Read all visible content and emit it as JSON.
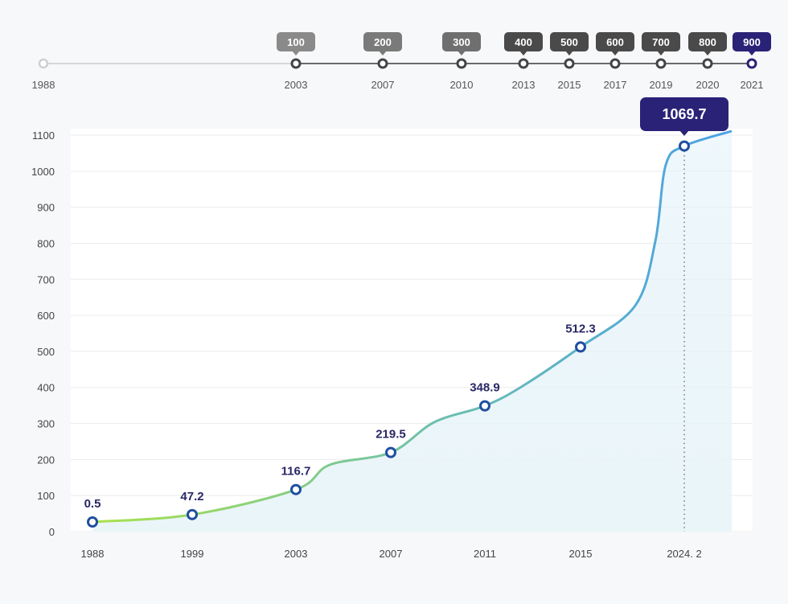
{
  "timeline": {
    "start_year": "1988",
    "milestones": [
      {
        "badge": "100",
        "year": "2003"
      },
      {
        "badge": "200",
        "year": "2007"
      },
      {
        "badge": "300",
        "year": "2010"
      },
      {
        "badge": "400",
        "year": "2013"
      },
      {
        "badge": "500",
        "year": "2015"
      },
      {
        "badge": "600",
        "year": "2017"
      },
      {
        "badge": "700",
        "year": "2019"
      },
      {
        "badge": "800",
        "year": "2020"
      },
      {
        "badge": "900",
        "year": "2021"
      }
    ],
    "active_color": "#2a2277"
  },
  "chart_data": {
    "type": "line",
    "categories": [
      "1988",
      "1999",
      "2003",
      "2007",
      "2011",
      "2015",
      "2024. 2"
    ],
    "values": [
      0.5,
      47.2,
      116.7,
      219.5,
      348.9,
      512.3,
      1069.7
    ],
    "labels": [
      "0.5",
      "47.2",
      "116.7",
      "219.5",
      "348.9",
      "512.3",
      "1069.7"
    ],
    "highlight": "1069.7",
    "yticks": [
      "0",
      "100",
      "200",
      "300",
      "400",
      "500",
      "600",
      "700",
      "800",
      "900",
      "1000",
      "1100"
    ],
    "ylim": [
      0,
      1100
    ],
    "grid": true,
    "title": "",
    "xlabel": "",
    "ylabel": "",
    "colors": {
      "start": "#a8e24a",
      "end": "#4aa0e6",
      "marker": "#1f4fa0",
      "tooltip": "#2a2277"
    }
  }
}
